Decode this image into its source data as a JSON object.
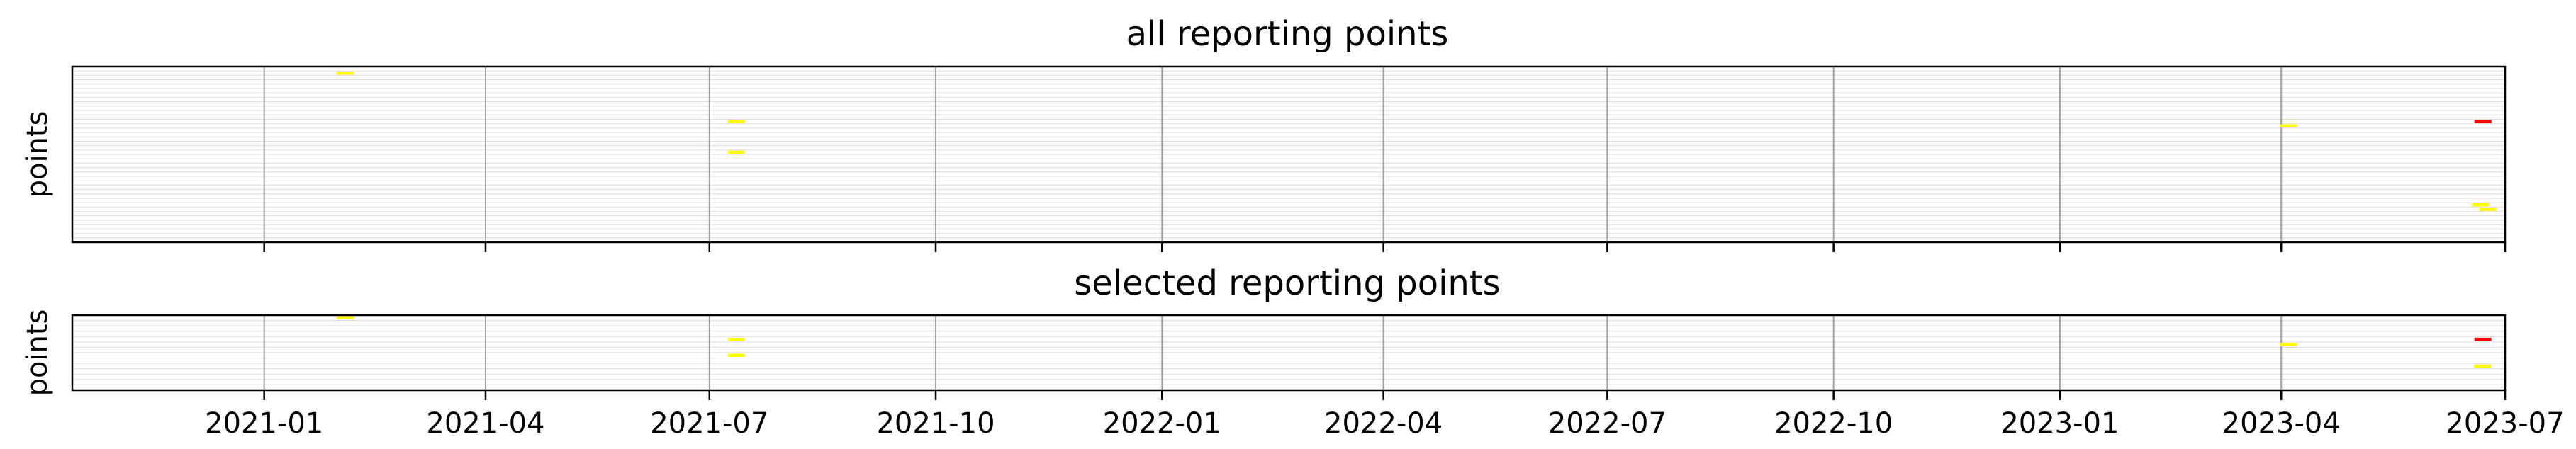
{
  "chart_data": [
    {
      "type": "scatter",
      "title": "all reporting points",
      "xlabel": "",
      "ylabel": "points",
      "x_axis": {
        "type": "date",
        "range": [
          "2020-10-15",
          "2023-07-01"
        ],
        "ticks": [
          "2021-01-01",
          "2021-04-01",
          "2021-07-01",
          "2021-10-01",
          "2022-01-01",
          "2022-04-01",
          "2022-07-01",
          "2022-10-01",
          "2023-01-01",
          "2023-04-01",
          "2023-07-01"
        ],
        "tick_labels_shown": false
      },
      "y_axis": {
        "rows": 40,
        "tick_labels_shown": false
      },
      "grid": {
        "x_major": true,
        "y_rows": true
      },
      "series": [
        {
          "color": "#ffff00",
          "points": [
            {
              "date": "2021-02-03",
              "row": 1
            },
            {
              "date": "2021-07-12",
              "row": 12
            },
            {
              "date": "2021-07-12",
              "row": 19
            },
            {
              "date": "2023-04-04",
              "row": 13
            },
            {
              "date": "2023-06-21",
              "row": 31
            },
            {
              "date": "2023-06-24",
              "row": 32
            }
          ]
        },
        {
          "color": "#ff0000",
          "points": [
            {
              "date": "2023-06-22",
              "row": 12
            }
          ]
        }
      ]
    },
    {
      "type": "scatter",
      "title": "selected reporting points",
      "xlabel": "",
      "ylabel": "points",
      "x_axis": {
        "type": "date",
        "range": [
          "2020-10-15",
          "2023-07-01"
        ],
        "ticks": [
          "2021-01-01",
          "2021-04-01",
          "2021-07-01",
          "2021-10-01",
          "2022-01-01",
          "2022-04-01",
          "2022-07-01",
          "2022-10-01",
          "2023-01-01",
          "2023-04-01",
          "2023-07-01"
        ],
        "tick_labels": [
          "2021-01",
          "2021-04",
          "2021-07",
          "2021-10",
          "2022-01",
          "2022-04",
          "2022-07",
          "2022-10",
          "2023-01",
          "2023-04",
          "2023-07"
        ],
        "tick_labels_shown": true
      },
      "y_axis": {
        "rows": 14,
        "tick_labels_shown": false
      },
      "grid": {
        "x_major": true,
        "y_rows": true
      },
      "series": [
        {
          "color": "#ffff00",
          "points": [
            {
              "date": "2021-02-03",
              "row": 0
            },
            {
              "date": "2021-07-12",
              "row": 4
            },
            {
              "date": "2021-07-12",
              "row": 7
            },
            {
              "date": "2023-04-04",
              "row": 5
            },
            {
              "date": "2023-06-22",
              "row": 9
            }
          ]
        },
        {
          "color": "#ff0000",
          "points": [
            {
              "date": "2023-06-22",
              "row": 4
            }
          ]
        }
      ]
    }
  ]
}
